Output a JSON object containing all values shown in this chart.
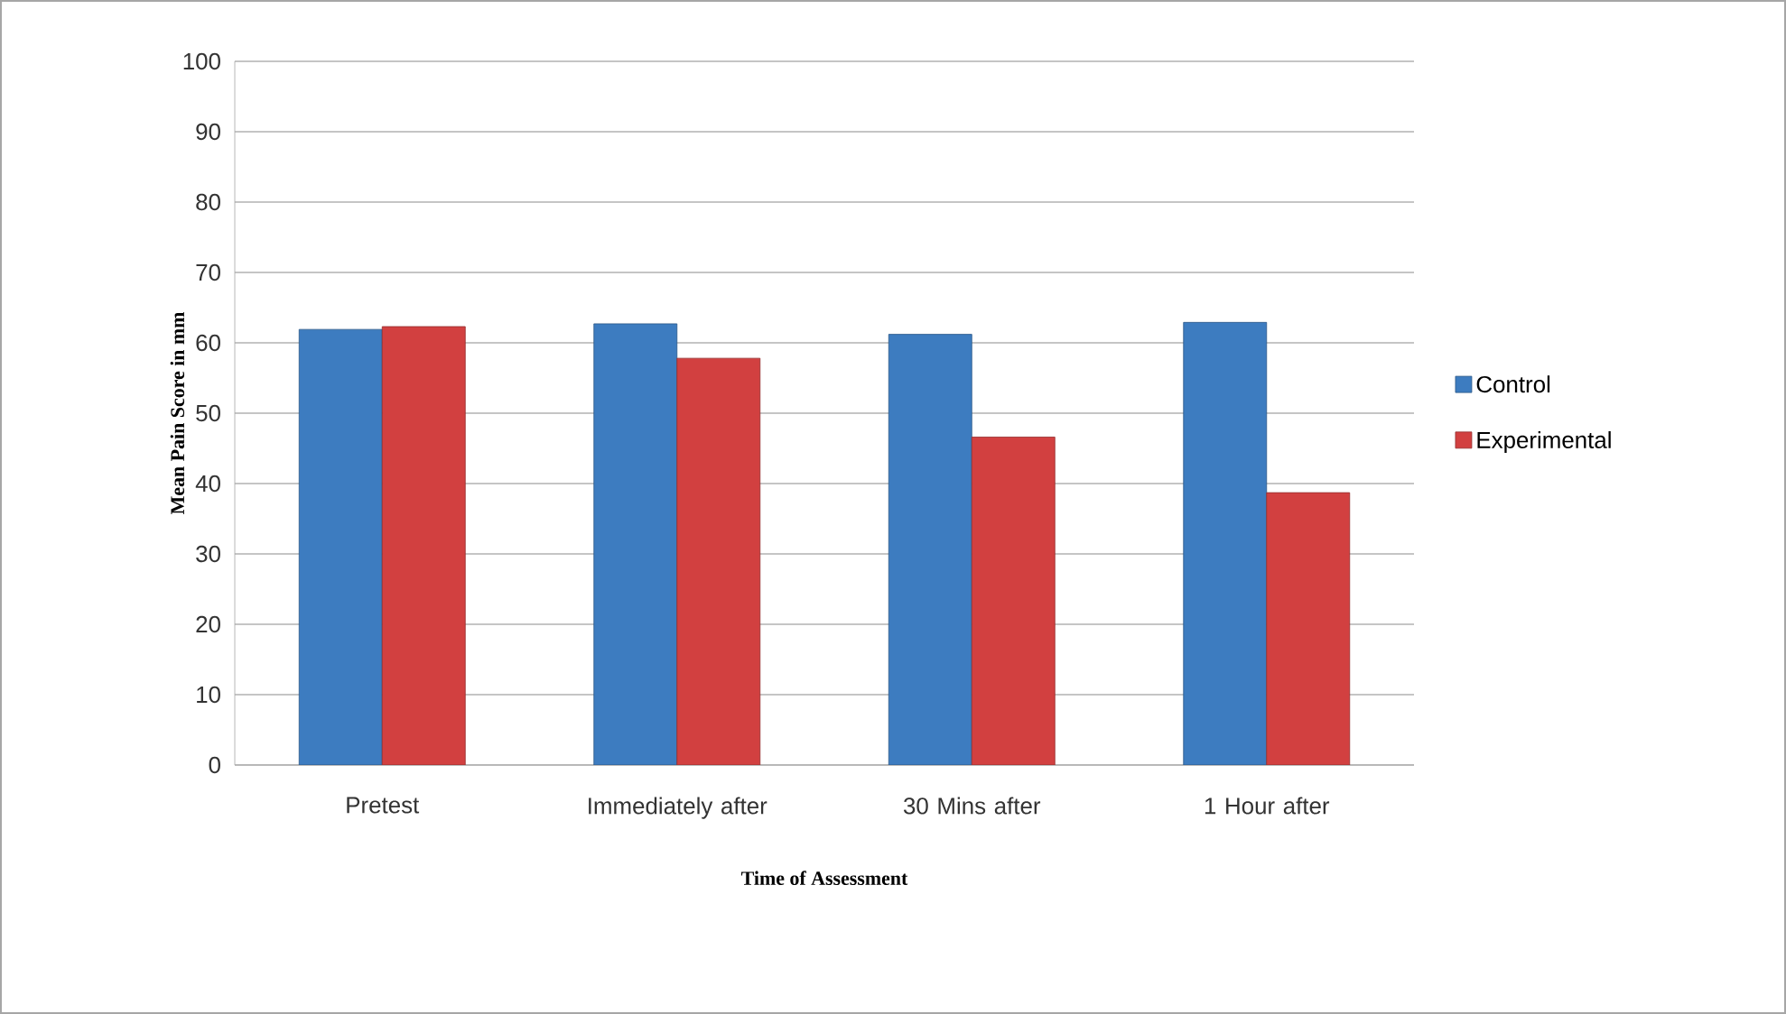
{
  "chart_data": {
    "type": "bar",
    "xlabel": "Time of Assessment",
    "ylabel": "Mean Pain Score  in mm",
    "categories": [
      "Pretest",
      "Immediately after",
      "30 Mins after",
      "1 Hour after"
    ],
    "series": [
      {
        "name": "Control",
        "color": "#3d7cc0",
        "values": [
          61.9,
          62.7,
          61.2,
          62.9
        ]
      },
      {
        "name": "Experimental",
        "color": "#d24040",
        "values": [
          62.3,
          57.8,
          46.6,
          38.7
        ]
      }
    ],
    "ylim": [
      0,
      100
    ],
    "yticks": [
      0,
      10,
      20,
      30,
      40,
      50,
      60,
      70,
      80,
      90,
      100
    ],
    "grid": "y",
    "legend": "right"
  }
}
